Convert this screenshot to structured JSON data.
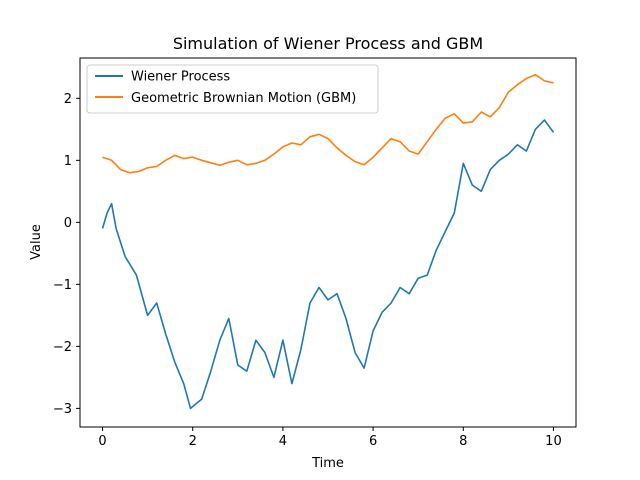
{
  "chart_data": {
    "type": "line",
    "title": "Simulation of Wiener Process and GBM",
    "xlabel": "Time",
    "ylabel": "Value",
    "xlim": [
      -0.5,
      10.5
    ],
    "ylim": [
      -3.3,
      2.65
    ],
    "xticks": [
      0,
      2,
      4,
      6,
      8,
      10
    ],
    "xtick_labels": [
      "0",
      "2",
      "4",
      "6",
      "8",
      "10"
    ],
    "yticks": [
      -3,
      -2,
      -1,
      0,
      1,
      2
    ],
    "ytick_labels": [
      "−3",
      "−2",
      "−1",
      "0",
      "1",
      "2"
    ],
    "grid": false,
    "legend_position": "top-left",
    "series": [
      {
        "name": "Wiener Process",
        "color": "#1f77b4",
        "x": [
          0,
          0.1,
          0.2,
          0.3,
          0.5,
          0.75,
          1.0,
          1.2,
          1.4,
          1.6,
          1.8,
          1.95,
          2.2,
          2.4,
          2.6,
          2.8,
          3.0,
          3.2,
          3.4,
          3.6,
          3.8,
          4.0,
          4.2,
          4.4,
          4.6,
          4.8,
          5.0,
          5.2,
          5.4,
          5.6,
          5.8,
          6.0,
          6.2,
          6.4,
          6.6,
          6.8,
          7.0,
          7.2,
          7.4,
          7.6,
          7.8,
          8.0,
          8.2,
          8.4,
          8.6,
          8.8,
          9.0,
          9.2,
          9.4,
          9.6,
          9.8,
          10.0
        ],
        "y": [
          -0.1,
          0.15,
          0.3,
          -0.1,
          -0.55,
          -0.85,
          -1.5,
          -1.3,
          -1.8,
          -2.25,
          -2.6,
          -3.0,
          -2.85,
          -2.4,
          -1.9,
          -1.55,
          -2.3,
          -2.4,
          -1.9,
          -2.1,
          -2.5,
          -1.9,
          -2.6,
          -2.05,
          -1.3,
          -1.05,
          -1.25,
          -1.15,
          -1.55,
          -2.1,
          -2.35,
          -1.75,
          -1.45,
          -1.3,
          -1.05,
          -1.15,
          -0.9,
          -0.85,
          -0.45,
          -0.15,
          0.15,
          0.95,
          0.6,
          0.5,
          0.85,
          1.0,
          1.1,
          1.25,
          1.15,
          1.5,
          1.65,
          1.45
        ]
      },
      {
        "name": "Geometric Brownian Motion (GBM)",
        "color": "#ff7f0e",
        "x": [
          0,
          0.2,
          0.4,
          0.6,
          0.8,
          1.0,
          1.2,
          1.4,
          1.6,
          1.8,
          2.0,
          2.2,
          2.4,
          2.6,
          2.8,
          3.0,
          3.2,
          3.4,
          3.6,
          3.8,
          4.0,
          4.2,
          4.4,
          4.6,
          4.8,
          5.0,
          5.2,
          5.4,
          5.6,
          5.8,
          6.0,
          6.2,
          6.4,
          6.6,
          6.8,
          7.0,
          7.2,
          7.4,
          7.6,
          7.8,
          8.0,
          8.2,
          8.4,
          8.6,
          8.8,
          9.0,
          9.2,
          9.4,
          9.6,
          9.8,
          10.0
        ],
        "y": [
          1.05,
          1.0,
          0.85,
          0.8,
          0.82,
          0.88,
          0.9,
          1.0,
          1.08,
          1.03,
          1.05,
          1.0,
          0.96,
          0.92,
          0.97,
          1.0,
          0.93,
          0.95,
          1.0,
          1.1,
          1.22,
          1.28,
          1.25,
          1.38,
          1.42,
          1.35,
          1.2,
          1.08,
          0.98,
          0.93,
          1.05,
          1.2,
          1.35,
          1.3,
          1.15,
          1.1,
          1.3,
          1.5,
          1.68,
          1.75,
          1.6,
          1.62,
          1.78,
          1.7,
          1.85,
          2.1,
          2.22,
          2.32,
          2.38,
          2.28,
          2.25
        ]
      }
    ]
  }
}
